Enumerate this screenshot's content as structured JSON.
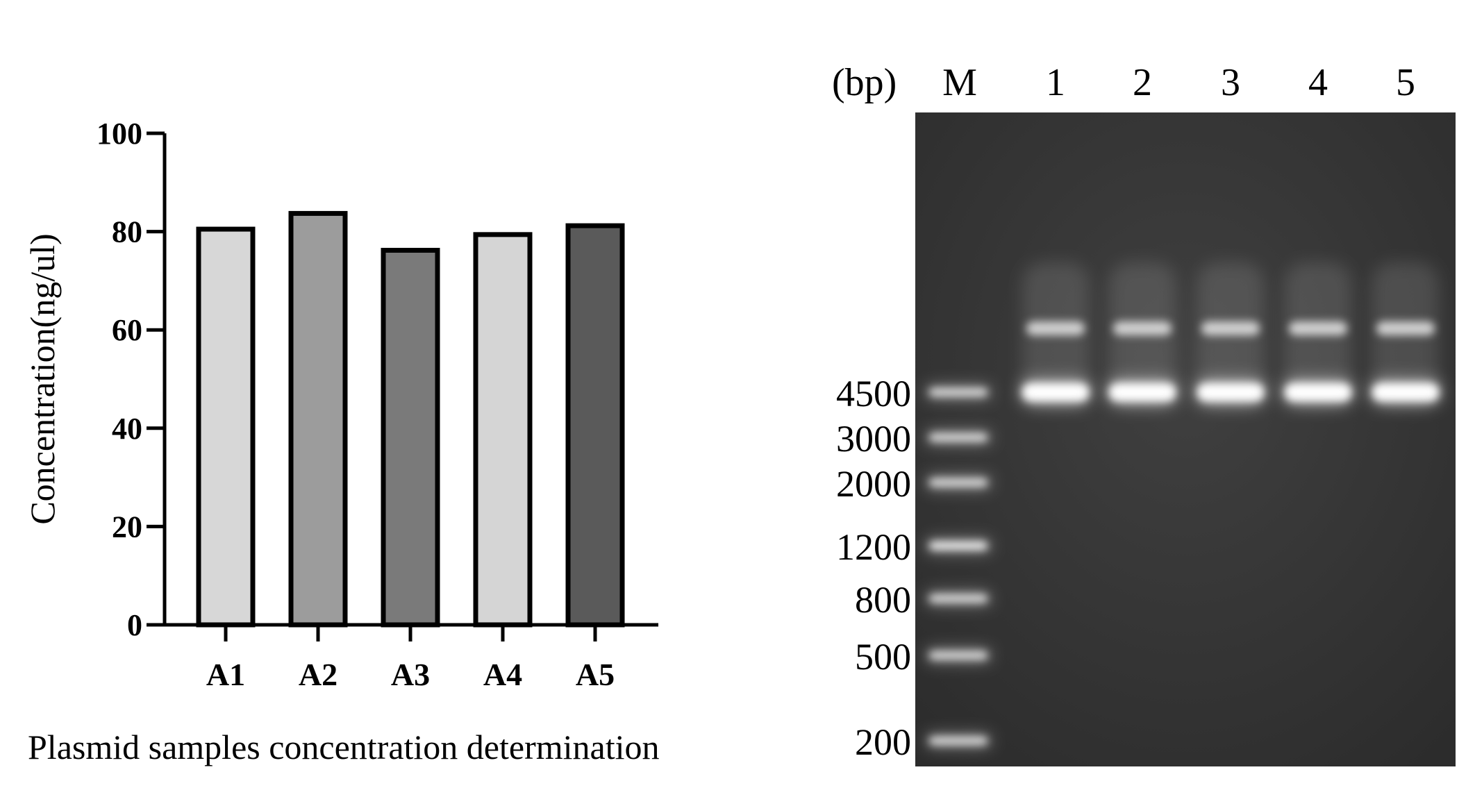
{
  "chart_data": [
    {
      "type": "bar",
      "title": "",
      "caption": "Plasmid samples concentration determination",
      "xlabel": "",
      "ylabel": "Concentration(ng/ul)",
      "categories": [
        "A1",
        "A2",
        "A3",
        "A4",
        "A5"
      ],
      "values": [
        80.5,
        83.7,
        76.2,
        79.4,
        81.2
      ],
      "ylim": [
        0,
        100
      ],
      "yticks": [
        0,
        20,
        40,
        60,
        80,
        100
      ],
      "grid": false,
      "bar_colors": [
        "#d7d7d7",
        "#9c9c9c",
        "#7a7a7a",
        "#d5d5d5",
        "#5a5a5a"
      ],
      "edge_color": "#000000"
    },
    {
      "type": "gel",
      "unit_label": "(bp)",
      "lane_labels": [
        "M",
        "1",
        "2",
        "3",
        "4",
        "5"
      ],
      "marker_sizes_bp": [
        4500,
        3000,
        2000,
        1200,
        800,
        500,
        200
      ],
      "sample_bands_bp": [
        "4500",
        "~6000"
      ],
      "gel_color": "#3a3a3a"
    }
  ]
}
